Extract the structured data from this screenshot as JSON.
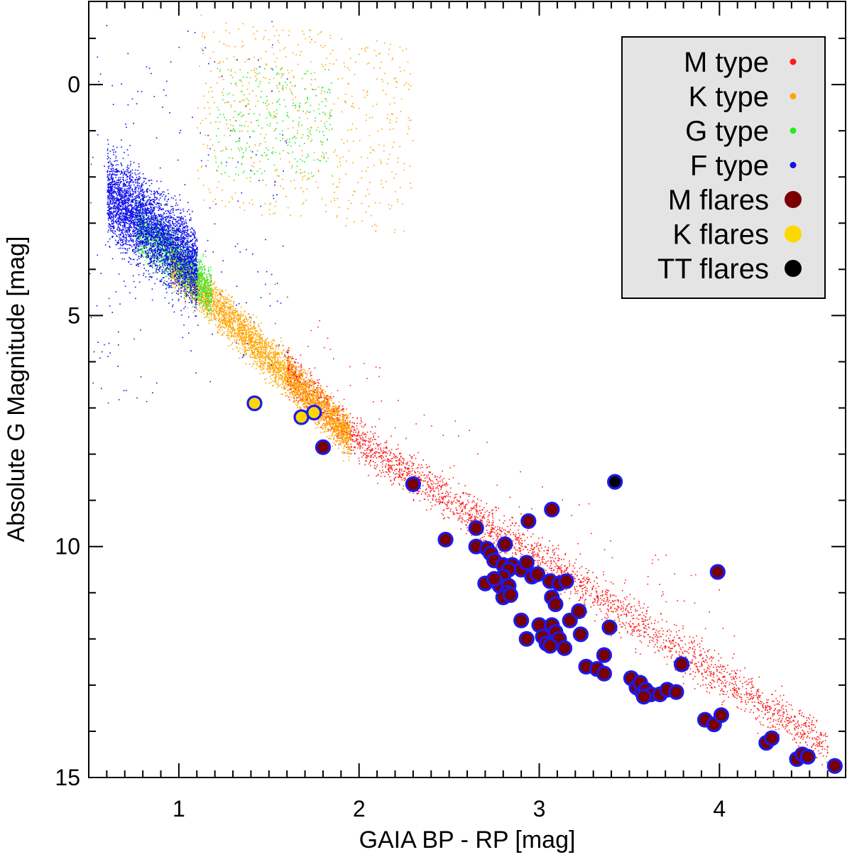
{
  "chart_data": {
    "type": "scatter",
    "title": "",
    "xlabel": "GAIA BP - RP [mag]",
    "ylabel": "Absolute G Magnitude [mag]",
    "xlim": [
      0.5,
      4.7
    ],
    "ylim": [
      15,
      -1.8
    ],
    "y_inverted": true,
    "x_major_ticks": [
      1,
      2,
      3,
      4
    ],
    "x_tick_labels": [
      "1",
      "2",
      "3",
      "4"
    ],
    "y_major_ticks": [
      0,
      5,
      10,
      15
    ],
    "y_tick_labels": [
      "0",
      "5",
      "10",
      "15"
    ],
    "x_minor_step": 0.1,
    "y_minor_step": 1,
    "grid": false,
    "legend_position": "top-right",
    "legend": [
      {
        "label": "M type",
        "color": "#ff1a1a",
        "marker": "small-dot"
      },
      {
        "label": "K type",
        "color": "#ffa500",
        "marker": "small-dot"
      },
      {
        "label": "G type",
        "color": "#22ee22",
        "marker": "small-dot"
      },
      {
        "label": "F type",
        "color": "#1010ee",
        "marker": "small-dot"
      },
      {
        "label": "M flares",
        "color": "#7a0000",
        "marker": "large-dot"
      },
      {
        "label": "K flares",
        "color": "#ffd700",
        "marker": "large-dot"
      },
      {
        "label": "TT flares",
        "color": "#000000",
        "marker": "large-dot"
      }
    ],
    "flare_outline_color": "#1a1aee",
    "background_stars": [
      {
        "name": "F type",
        "color": "#1010ee",
        "count": 4200,
        "note": "main sequence BP-RP 0.6-1.1, G 1.7-6.5; sparse giants near 0-1"
      },
      {
        "name": "G type",
        "color": "#22ee22",
        "count": 1800,
        "note": "main sequence BP-RP 0.75-1.2, G 3.5-6.5; giant clump 1.2-1.8, G 0-2"
      },
      {
        "name": "K type",
        "color": "#ffa500",
        "count": 4500,
        "note": "main sequence BP-RP 0.95-1.95, G 4.8-8; giants BP-RP 1.1-2.3, G -1.5-2.5"
      },
      {
        "name": "M type",
        "color": "#ff1a1a",
        "count": 3300,
        "note": "main sequence BP-RP 1.6-4.6, G 7-15"
      }
    ],
    "series": [
      {
        "name": "K flares",
        "color": "#ffd700",
        "points": [
          [
            1.42,
            6.9
          ],
          [
            1.68,
            7.2
          ],
          [
            1.75,
            7.1
          ]
        ]
      },
      {
        "name": "TT flares",
        "color": "#000000",
        "points": [
          [
            3.42,
            8.6
          ]
        ]
      },
      {
        "name": "M flares",
        "color": "#7a0000",
        "points": [
          [
            1.8,
            7.85
          ],
          [
            2.3,
            8.65
          ],
          [
            2.48,
            9.85
          ],
          [
            2.65,
            9.6
          ],
          [
            2.65,
            10.0
          ],
          [
            2.71,
            10.05
          ],
          [
            2.73,
            10.15
          ],
          [
            2.75,
            10.3
          ],
          [
            2.81,
            9.95
          ],
          [
            2.8,
            10.4
          ],
          [
            2.85,
            10.4
          ],
          [
            2.9,
            10.5
          ],
          [
            2.93,
            10.35
          ],
          [
            2.83,
            10.5
          ],
          [
            2.8,
            10.65
          ],
          [
            2.78,
            10.85
          ],
          [
            2.83,
            10.85
          ],
          [
            2.82,
            11.0
          ],
          [
            2.8,
            11.1
          ],
          [
            2.84,
            11.05
          ],
          [
            2.7,
            10.8
          ],
          [
            2.75,
            10.7
          ],
          [
            2.9,
            11.6
          ],
          [
            2.93,
            12.0
          ],
          [
            2.96,
            10.65
          ],
          [
            2.99,
            10.6
          ],
          [
            2.94,
            9.45
          ],
          [
            3.07,
            9.2
          ],
          [
            3.06,
            10.75
          ],
          [
            3.11,
            10.8
          ],
          [
            3.15,
            10.75
          ],
          [
            3.07,
            11.1
          ],
          [
            3.09,
            11.25
          ],
          [
            3.17,
            11.6
          ],
          [
            3.22,
            11.4
          ],
          [
            3.0,
            11.7
          ],
          [
            3.02,
            11.95
          ],
          [
            3.04,
            12.1
          ],
          [
            3.07,
            11.7
          ],
          [
            3.09,
            11.85
          ],
          [
            3.11,
            12.0
          ],
          [
            3.14,
            12.2
          ],
          [
            3.06,
            12.15
          ],
          [
            3.23,
            11.9
          ],
          [
            3.26,
            12.6
          ],
          [
            3.32,
            12.65
          ],
          [
            3.36,
            12.75
          ],
          [
            3.36,
            12.35
          ],
          [
            3.39,
            11.75
          ],
          [
            3.51,
            12.85
          ],
          [
            3.54,
            13.05
          ],
          [
            3.57,
            13.15
          ],
          [
            3.56,
            12.95
          ],
          [
            3.59,
            13.1
          ],
          [
            3.62,
            13.2
          ],
          [
            3.58,
            13.25
          ],
          [
            3.67,
            13.2
          ],
          [
            3.71,
            13.1
          ],
          [
            3.76,
            13.15
          ],
          [
            3.79,
            12.55
          ],
          [
            3.92,
            13.75
          ],
          [
            3.97,
            13.85
          ],
          [
            4.01,
            13.65
          ],
          [
            3.99,
            10.55
          ],
          [
            4.26,
            14.25
          ],
          [
            4.29,
            14.15
          ],
          [
            4.43,
            14.6
          ],
          [
            4.46,
            14.5
          ],
          [
            4.49,
            14.55
          ],
          [
            4.64,
            14.75
          ]
        ]
      }
    ]
  }
}
